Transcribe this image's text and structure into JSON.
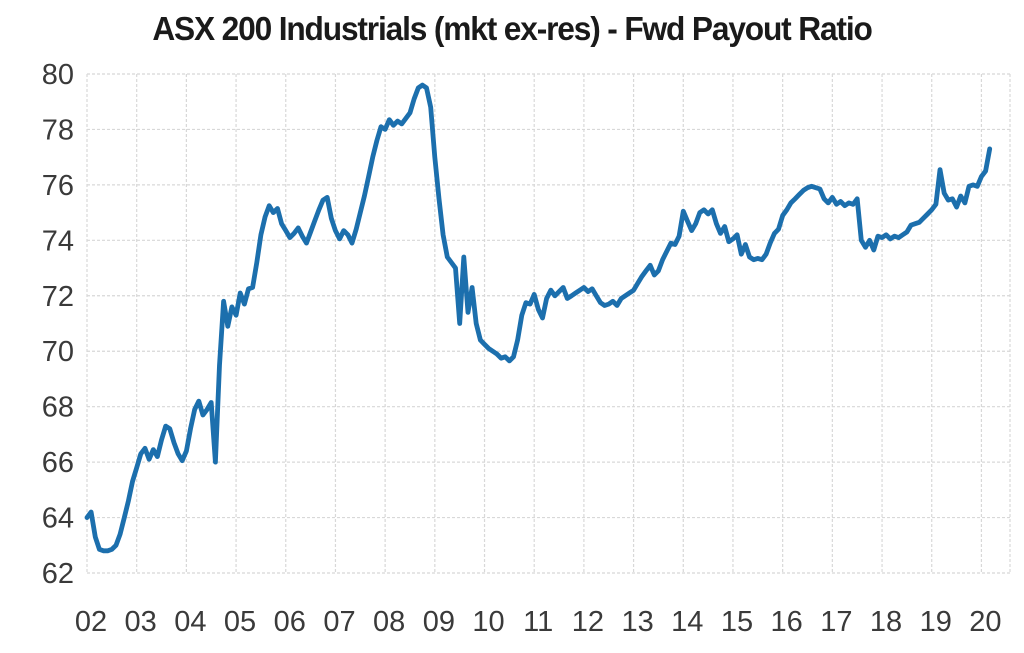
{
  "chart": {
    "title": "ASX 200 Industrials (mkt ex-res) - Fwd Payout Ratio"
  },
  "colors": {
    "line": "#1c6fad",
    "gridline": "#d8d8d8",
    "axis_label": "#3a3a3a",
    "title": "#1a1a1a",
    "background": "#ffffff"
  },
  "chart_data": {
    "type": "line",
    "title": "ASX 200 Industrials (mkt ex-res) - Fwd Payout Ratio",
    "xlabel": "",
    "ylabel": "",
    "ylim": [
      62,
      80
    ],
    "y_tick_step": 2,
    "y_ticks": [
      62,
      64,
      66,
      68,
      70,
      72,
      74,
      76,
      78,
      80
    ],
    "x_tick_labels": [
      "02",
      "03",
      "04",
      "05",
      "06",
      "07",
      "08",
      "09",
      "10",
      "11",
      "12",
      "13",
      "14",
      "15",
      "16",
      "17",
      "18",
      "19",
      "20"
    ],
    "x_start_year": 2002,
    "frequency": "monthly",
    "grid": true,
    "legend": false,
    "series": [
      {
        "name": "Fwd Payout Ratio",
        "color": "#1c6fad",
        "start": "2002-01",
        "end": "2020-03",
        "values": [
          64.0,
          64.2,
          63.3,
          62.85,
          62.8,
          62.8,
          62.85,
          63.0,
          63.4,
          64.0,
          64.6,
          65.3,
          65.8,
          66.3,
          66.5,
          66.1,
          66.45,
          66.2,
          66.8,
          67.3,
          67.2,
          66.7,
          66.3,
          66.05,
          66.4,
          67.2,
          67.9,
          68.2,
          67.7,
          67.9,
          68.15,
          66.0,
          69.5,
          71.8,
          70.9,
          71.6,
          71.3,
          72.1,
          71.7,
          72.25,
          72.3,
          73.2,
          74.2,
          74.85,
          75.25,
          75.0,
          75.15,
          74.6,
          74.35,
          74.1,
          74.25,
          74.45,
          74.15,
          73.9,
          74.3,
          74.7,
          75.1,
          75.45,
          75.55,
          74.8,
          74.35,
          74.05,
          74.35,
          74.2,
          73.9,
          74.4,
          75.0,
          75.6,
          76.3,
          77.0,
          77.6,
          78.1,
          78.0,
          78.35,
          78.15,
          78.3,
          78.2,
          78.4,
          78.6,
          79.1,
          79.5,
          79.6,
          79.5,
          78.8,
          77.0,
          75.5,
          74.2,
          73.4,
          73.2,
          73.0,
          71.0,
          73.4,
          71.4,
          72.3,
          71.0,
          70.4,
          70.25,
          70.1,
          70.0,
          69.9,
          69.75,
          69.8,
          69.65,
          69.8,
          70.4,
          71.3,
          71.75,
          71.7,
          72.05,
          71.5,
          71.2,
          71.9,
          72.2,
          72.0,
          72.15,
          72.3,
          71.9,
          72.0,
          72.1,
          72.2,
          72.3,
          72.15,
          72.25,
          72.0,
          71.75,
          71.65,
          71.7,
          71.8,
          71.65,
          71.9,
          72.0,
          72.1,
          72.2,
          72.45,
          72.7,
          72.9,
          73.1,
          72.75,
          72.9,
          73.3,
          73.6,
          73.9,
          73.85,
          74.15,
          75.05,
          74.7,
          74.35,
          74.6,
          75.0,
          75.1,
          74.95,
          75.1,
          74.6,
          74.25,
          74.5,
          73.95,
          74.05,
          74.2,
          73.5,
          73.85,
          73.4,
          73.3,
          73.35,
          73.3,
          73.5,
          73.9,
          74.25,
          74.4,
          74.9,
          75.1,
          75.35,
          75.5,
          75.65,
          75.8,
          75.9,
          75.95,
          75.9,
          75.85,
          75.5,
          75.35,
          75.55,
          75.3,
          75.4,
          75.25,
          75.35,
          75.3,
          75.5,
          74.0,
          73.75,
          74.0,
          73.65,
          74.15,
          74.1,
          74.2,
          74.05,
          74.15,
          74.1,
          74.2,
          74.3,
          74.55,
          74.6,
          74.65,
          74.8,
          74.95,
          75.1,
          75.3,
          76.55,
          75.7,
          75.45,
          75.5,
          75.2,
          75.6,
          75.35,
          75.95,
          76.0,
          75.95,
          76.3,
          76.5,
          77.3
        ]
      }
    ]
  }
}
